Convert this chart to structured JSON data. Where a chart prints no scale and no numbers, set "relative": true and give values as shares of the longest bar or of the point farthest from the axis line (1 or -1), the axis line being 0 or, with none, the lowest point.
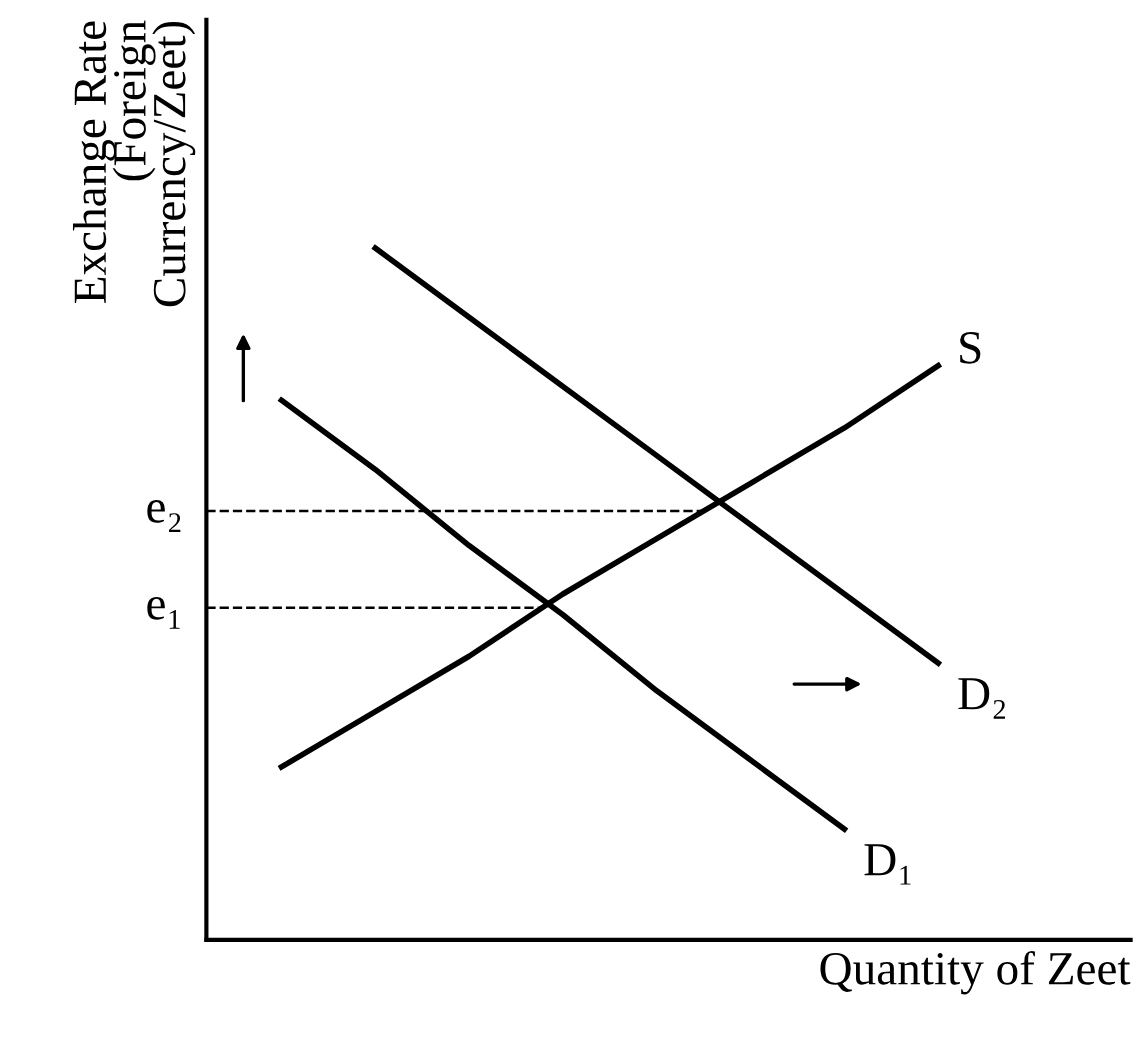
{
  "chart_data": {
    "type": "line",
    "relative": true,
    "xlabel": "Quantity of Zeet",
    "ylabel": "Exchange Rate\n(Foreign\nCurrency/Zeet)",
    "categories": [
      null,
      null,
      null,
      null,
      null,
      null,
      null,
      null
    ],
    "series": [
      {
        "name": "S",
        "color": "#000000",
        "values": [
          0.25,
          0.33,
          0.41,
          0.5,
          0.58,
          0.66,
          0.74,
          0.83
        ]
      },
      {
        "name": "D₁",
        "color": "#000000",
        "values": [
          0.78,
          0.68,
          0.57,
          0.47,
          0.36,
          0.26,
          0.16,
          null
        ]
      },
      {
        "name": "D₂",
        "color": "#000000",
        "values": [
          null,
          1,
          0.9,
          0.8,
          0.7,
          0.6,
          0.5,
          0.4
        ]
      }
    ],
    "ref_lines": [
      {
        "axis": "y",
        "value": 0.48,
        "label": "e₁",
        "line_style": "dashed"
      },
      {
        "axis": "y",
        "value": 0.62,
        "label": "e₂",
        "line_style": "dashed"
      }
    ],
    "marker": "none",
    "line_style": "solid"
  }
}
